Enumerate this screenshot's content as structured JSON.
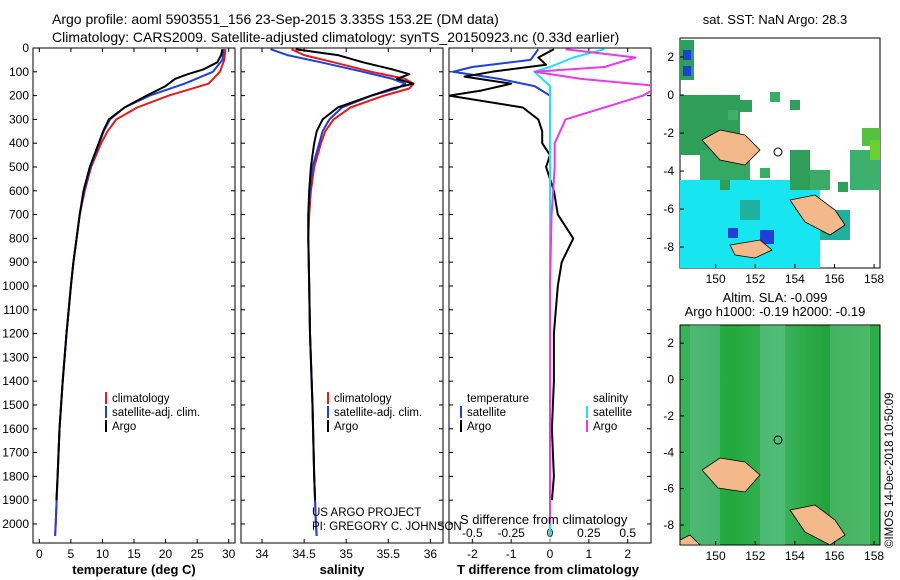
{
  "header": {
    "line1": "Argo profile: aoml 5903551_156 23-Sep-2015 3.335S 153.2E (DM data)",
    "line2": "Climatology: CARS2009. Satellite-adjusted climatology: synTS_20150923.nc (0.33d earlier)"
  },
  "colors": {
    "climatology": "#e41a1c",
    "satellite": "#1f3fd6",
    "argo": "#000000",
    "salinity_sat": "#22e0f0",
    "salinity_argo": "#e83be6"
  },
  "chart_data": [
    {
      "type": "line",
      "xlabel": "temperature (deg C)",
      "xlim": [
        -1,
        31
      ],
      "ylim": [
        2080,
        0
      ],
      "xticks": [
        "0",
        "5",
        "10",
        "15",
        "20",
        "25",
        "30"
      ],
      "yticks": [
        "0",
        "100",
        "200",
        "300",
        "400",
        "500",
        "600",
        "700",
        "800",
        "900",
        "1000",
        "1100",
        "1200",
        "1300",
        "1400",
        "1500",
        "1600",
        "1700",
        "1800",
        "1900",
        "2000"
      ],
      "legend": [
        "climatology",
        "satellite-adj. clim.",
        "Argo"
      ],
      "series": [
        {
          "name": "climatology",
          "depth": [
            5,
            50,
            100,
            150,
            200,
            250,
            300,
            350,
            400,
            500,
            600,
            700,
            800,
            900,
            1000,
            1200,
            1400,
            1600,
            1800,
            2000,
            2050
          ],
          "values": [
            29.5,
            29.3,
            28.6,
            26.8,
            20.5,
            15.5,
            12.2,
            10.8,
            9.8,
            8.2,
            7.2,
            6.4,
            5.9,
            5.4,
            5.0,
            4.3,
            3.7,
            3.2,
            2.9,
            2.6,
            2.5
          ]
        },
        {
          "name": "satellite-adj. clim.",
          "depth": [
            5,
            50,
            100,
            150,
            200,
            250,
            300,
            350,
            400,
            500,
            600,
            700,
            800,
            900,
            1000,
            1200,
            1400,
            1600,
            1800,
            2000,
            2050
          ],
          "values": [
            29.2,
            29.0,
            27.5,
            23.0,
            17.5,
            13.5,
            11.2,
            10.2,
            9.5,
            8.1,
            7.1,
            6.4,
            5.9,
            5.4,
            5.0,
            4.3,
            3.7,
            3.2,
            2.9,
            2.6,
            2.5
          ]
        },
        {
          "name": "Argo",
          "depth": [
            5,
            30,
            60,
            90,
            110,
            130,
            160,
            200,
            250,
            300,
            350,
            400,
            500,
            600,
            700,
            800,
            900,
            1000,
            1200,
            1400,
            1600,
            1800,
            1900
          ],
          "values": [
            29.0,
            28.8,
            28.2,
            26.0,
            23.5,
            21.5,
            20.0,
            17.0,
            13.5,
            11.0,
            10.1,
            9.4,
            8.0,
            7.0,
            6.4,
            5.9,
            5.4,
            5.0,
            4.3,
            3.7,
            3.2,
            2.9,
            2.7
          ]
        }
      ]
    },
    {
      "type": "line",
      "xlabel": "salinity",
      "xlim": [
        33.75,
        36.15
      ],
      "ylim": [
        2080,
        0
      ],
      "xticks": [
        "34",
        "34.5",
        "35",
        "35.5",
        "36"
      ],
      "legend": [
        "climatology",
        "satellite-adj. clim.",
        "Argo"
      ],
      "annotation": [
        "US ARGO PROJECT",
        "PI: GREGORY C. JOHNSON"
      ],
      "series": [
        {
          "name": "climatology",
          "depth": [
            5,
            30,
            60,
            100,
            130,
            150,
            170,
            200,
            250,
            300,
            350,
            400,
            500,
            600,
            700,
            800,
            1000,
            1200,
            1500,
            1800,
            2000,
            2050
          ],
          "values": [
            34.35,
            34.5,
            34.85,
            35.3,
            35.7,
            35.8,
            35.75,
            35.45,
            35.05,
            34.85,
            34.75,
            34.7,
            34.62,
            34.58,
            34.56,
            34.55,
            34.56,
            34.57,
            34.6,
            34.62,
            34.64,
            34.65
          ]
        },
        {
          "name": "satellite-adj. clim.",
          "depth": [
            5,
            30,
            60,
            100,
            130,
            150,
            170,
            200,
            250,
            300,
            350,
            400,
            500,
            600,
            700,
            800,
            1000,
            1200,
            1500,
            1800,
            2000,
            2050
          ],
          "values": [
            34.1,
            34.3,
            34.7,
            35.2,
            35.55,
            35.7,
            35.6,
            35.3,
            34.95,
            34.8,
            34.72,
            34.68,
            34.6,
            34.57,
            34.55,
            34.55,
            34.56,
            34.57,
            34.6,
            34.62,
            34.64,
            34.65
          ]
        },
        {
          "name": "Argo",
          "depth": [
            5,
            30,
            60,
            90,
            110,
            130,
            150,
            170,
            200,
            250,
            300,
            350,
            400,
            450,
            500,
            600,
            700,
            800,
            1000,
            1200,
            1500,
            1800,
            1900
          ],
          "values": [
            34.4,
            34.9,
            35.2,
            35.55,
            35.75,
            35.6,
            35.8,
            35.55,
            35.3,
            34.9,
            34.72,
            34.65,
            34.62,
            34.6,
            34.58,
            34.56,
            34.55,
            34.55,
            34.56,
            34.57,
            34.6,
            34.62,
            34.63
          ]
        }
      ]
    },
    {
      "type": "line",
      "xlabel": "T difference from climatology",
      "xlabel_top": "S difference from climatology",
      "xlim": [
        -2.6,
        2.6
      ],
      "ylim": [
        2080,
        0
      ],
      "xticks": [
        "-2",
        "-1",
        "0",
        "1",
        "2"
      ],
      "xticks_top": [
        "-0.5",
        "-0.25",
        "0",
        "0.25",
        "0.5"
      ],
      "legend_left": [
        "temperature",
        "satellite",
        "Argo"
      ],
      "legend_right": [
        "salinity",
        "satellite",
        "Argo"
      ],
      "series": [
        {
          "name": "temperature satellite",
          "depth": [
            5,
            50,
            80,
            100,
            130,
            160,
            200,
            260,
            320,
            400,
            500,
            700,
            1000,
            1500,
            2000,
            2050
          ],
          "values": [
            -0.3,
            -0.5,
            -2.0,
            -2.5,
            -1.3,
            -0.4,
            0,
            0,
            0,
            0,
            0,
            0,
            0,
            0,
            0,
            0
          ]
        },
        {
          "name": "temperature Argo",
          "depth": [
            5,
            40,
            70,
            100,
            120,
            150,
            180,
            200,
            250,
            300,
            350,
            400,
            450,
            500,
            600,
            700,
            800,
            900,
            1000,
            1200,
            1400,
            1600,
            1800,
            1900
          ],
          "values": [
            0.1,
            -0.3,
            -0.1,
            -1.5,
            -2.2,
            -1.0,
            -1.8,
            -2.6,
            -0.7,
            -0.3,
            -0.2,
            -0.2,
            0,
            -0.1,
            0.1,
            0.2,
            0.6,
            0.3,
            0.2,
            0.1,
            0.1,
            0.05,
            0.1,
            0.05
          ]
        },
        {
          "name": "salinity satellite",
          "depth": [
            5,
            40,
            80,
            100,
            130,
            160,
            200,
            300,
            400,
            500,
            700,
            1000,
            1500,
            2000,
            2050
          ],
          "values": [
            0.35,
            0.15,
            0,
            -0.1,
            -0.05,
            0,
            0,
            0,
            0,
            0,
            0,
            0,
            0,
            0,
            0
          ]
        },
        {
          "name": "salinity Argo",
          "depth": [
            5,
            40,
            80,
            100,
            130,
            160,
            200,
            300,
            400,
            500,
            700,
            1000,
            1500,
            2000
          ],
          "values": [
            0.1,
            0.55,
            0.35,
            -0.1,
            0.2,
            0.7,
            0.6,
            0.1,
            0.03,
            0.03,
            0.01,
            0,
            0,
            0
          ]
        }
      ]
    }
  ],
  "map_top": {
    "title": "sat. SST: NaN Argo: 28.3",
    "yticks": [
      "2",
      "0",
      "-2",
      "-4",
      "-6",
      "-8"
    ],
    "xticks": [
      "150",
      "152",
      "154",
      "156",
      "158"
    ]
  },
  "map_bottom": {
    "title1": "Altim. SLA: -0.099",
    "title2": "Argo h1000: -0.19 h2000: -0.19",
    "yticks": [
      "2",
      "0",
      "-2",
      "-4",
      "-6",
      "-8"
    ],
    "xticks": [
      "150",
      "152",
      "154",
      "156",
      "158"
    ]
  },
  "credit": "©IMOS 14-Dec-2018 10:50:09"
}
